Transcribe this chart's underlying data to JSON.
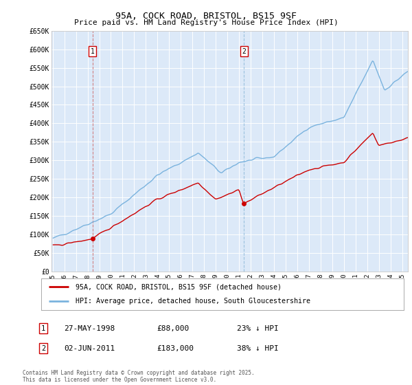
{
  "title": "95A, COCK ROAD, BRISTOL, BS15 9SF",
  "subtitle": "Price paid vs. HM Land Registry's House Price Index (HPI)",
  "ylim": [
    0,
    650000
  ],
  "yticks": [
    0,
    50000,
    100000,
    150000,
    200000,
    250000,
    300000,
    350000,
    400000,
    450000,
    500000,
    550000,
    600000,
    650000
  ],
  "ytick_labels": [
    "£0",
    "£50K",
    "£100K",
    "£150K",
    "£200K",
    "£250K",
    "£300K",
    "£350K",
    "£400K",
    "£450K",
    "£500K",
    "£550K",
    "£600K",
    "£650K"
  ],
  "xlim_start": 1994.9,
  "xlim_end": 2025.5,
  "background_color": "#ffffff",
  "plot_bg_color": "#dce9f8",
  "grid_color": "#ffffff",
  "red_color": "#cc0000",
  "blue_color": "#7ab3de",
  "sale1_x": 1998.41,
  "sale1_y": 88000,
  "sale1_label": "1",
  "sale1_date": "27-MAY-1998",
  "sale1_price": "£88,000",
  "sale1_hpi": "23% ↓ HPI",
  "sale2_x": 2011.42,
  "sale2_y": 183000,
  "sale2_label": "2",
  "sale2_date": "02-JUN-2011",
  "sale2_price": "£183,000",
  "sale2_hpi": "38% ↓ HPI",
  "legend_line1": "95A, COCK ROAD, BRISTOL, BS15 9SF (detached house)",
  "legend_line2": "HPI: Average price, detached house, South Gloucestershire",
  "copyright": "Contains HM Land Registry data © Crown copyright and database right 2025.\nThis data is licensed under the Open Government Licence v3.0."
}
